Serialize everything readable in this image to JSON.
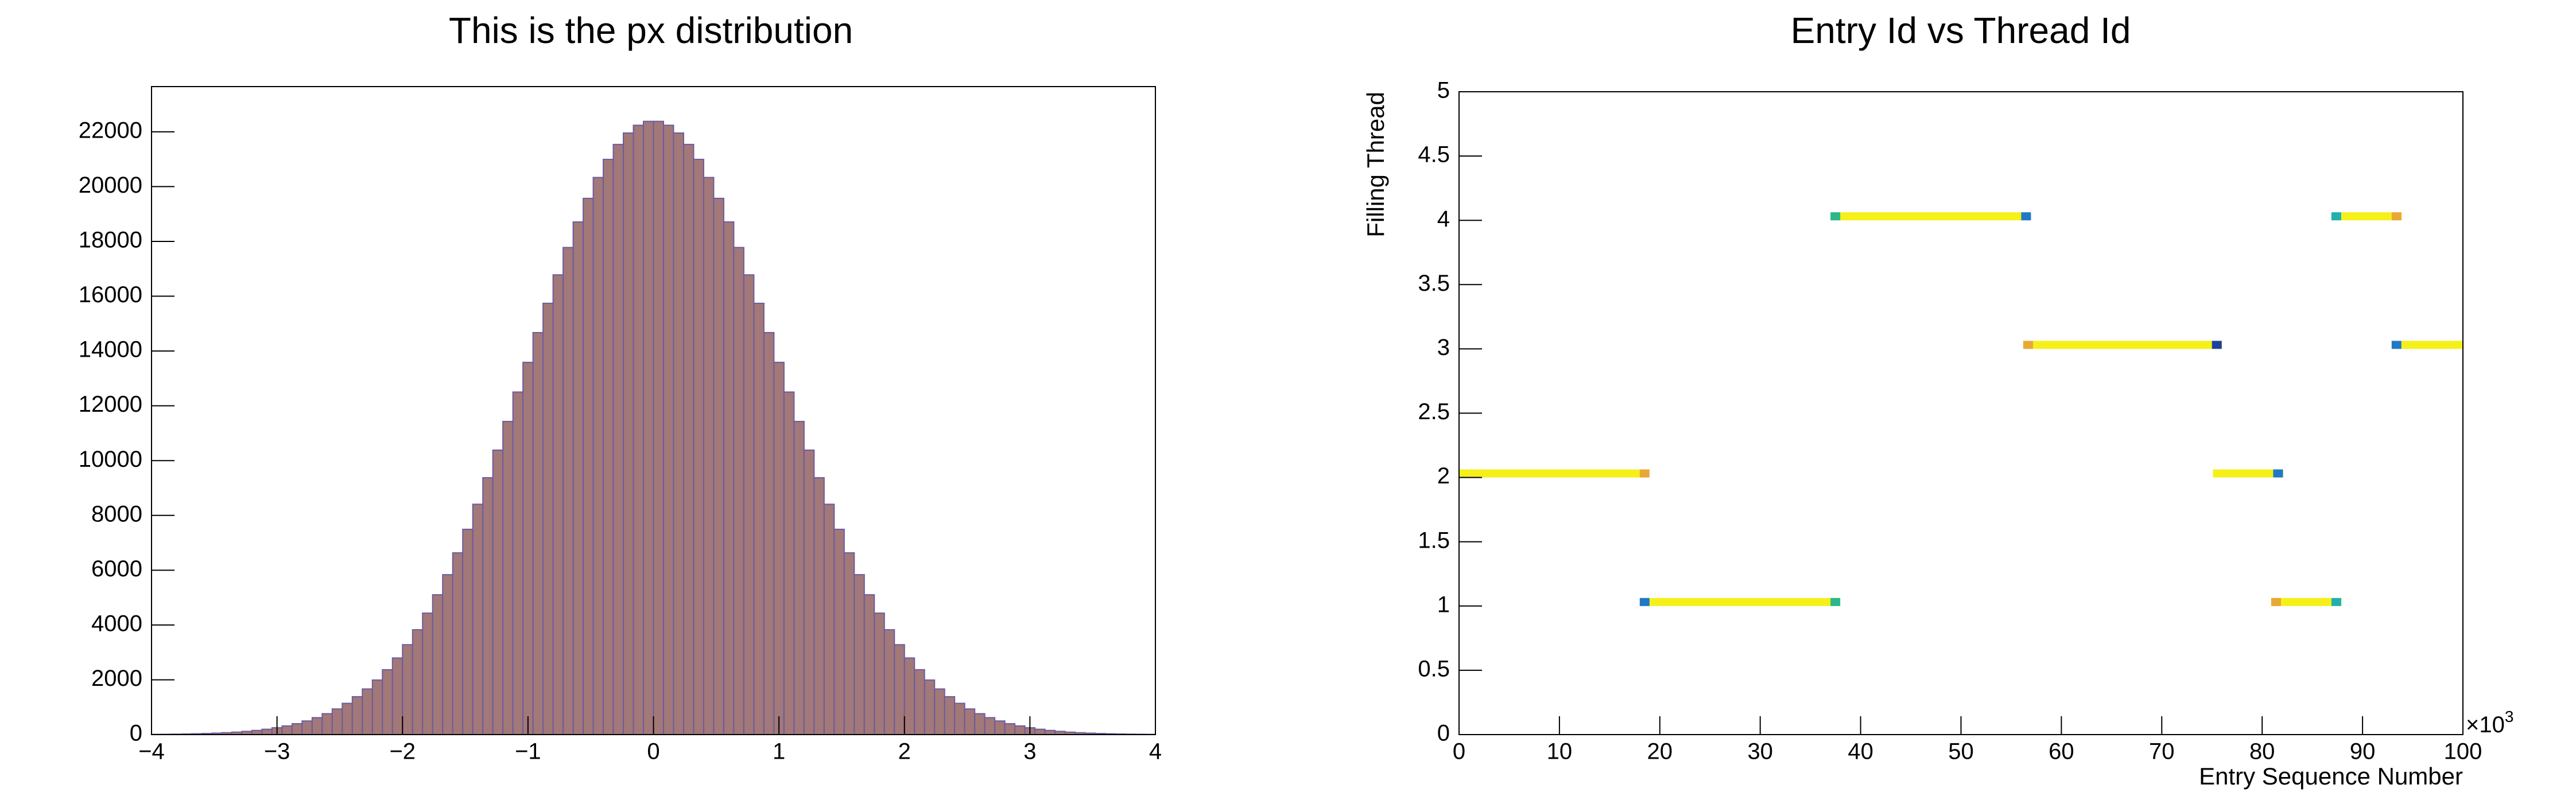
{
  "chart_data": [
    {
      "type": "histogram",
      "title": "This is the px distribution",
      "color": "#a27878",
      "edge_color": "#6c5b9e",
      "bins": [
        -4,
        -3.92,
        -3.84,
        -3.76,
        -3.68,
        -3.6,
        -3.52,
        -3.44,
        -3.36,
        -3.28,
        -3.2,
        -3.12,
        -3.04,
        -2.96,
        -2.88,
        -2.8,
        -2.72,
        -2.64,
        -2.56,
        -2.48,
        -2.4,
        -2.32,
        -2.24,
        -2.16,
        -2.08,
        -2,
        -1.92,
        -1.84,
        -1.76,
        -1.68,
        -1.6,
        -1.52,
        -1.44,
        -1.36,
        -1.28,
        -1.2,
        -1.12,
        -1.04,
        -0.96,
        -0.88,
        -0.8,
        -0.72,
        -0.64,
        -0.56,
        -0.48,
        -0.4,
        -0.32,
        -0.24,
        -0.16,
        -0.08,
        0,
        0.08,
        0.16,
        0.24,
        0.32,
        0.4,
        0.48,
        0.56,
        0.64,
        0.72,
        0.8,
        0.88,
        0.96,
        1.04,
        1.12,
        1.2,
        1.28,
        1.36,
        1.44,
        1.52,
        1.6,
        1.68,
        1.76,
        1.84,
        1.92,
        2,
        2.08,
        2.16,
        2.24,
        2.32,
        2.4,
        2.48,
        2.56,
        2.64,
        2.72,
        2.8,
        2.88,
        2.96,
        3.04,
        3.12,
        3.2,
        3.28,
        3.36,
        3.44,
        3.52,
        3.6,
        3.68,
        3.76,
        3.84,
        3.92,
        4
      ],
      "values": [
        9,
        12,
        16,
        22,
        30,
        40,
        53,
        69,
        90,
        118,
        152,
        195,
        249,
        315,
        397,
        497,
        618,
        763,
        936,
        1141,
        1383,
        1665,
        1992,
        2368,
        2796,
        3281,
        3827,
        4433,
        5104,
        5837,
        6633,
        7493,
        8407,
        9375,
        10383,
        11429,
        12503,
        13586,
        14672,
        15741,
        16779,
        17778,
        18710,
        19571,
        20333,
        20994,
        21539,
        21956,
        22239,
        22382,
        22382,
        22239,
        21956,
        21539,
        20994,
        20333,
        19571,
        18710,
        17778,
        16779,
        15741,
        14672,
        13586,
        12503,
        11429,
        10383,
        9375,
        8407,
        7493,
        6633,
        5837,
        5104,
        4433,
        3827,
        3281,
        2796,
        2368,
        1992,
        1665,
        1383,
        1141,
        936,
        763,
        618,
        497,
        397,
        315,
        249,
        195,
        152,
        118,
        90,
        69,
        53,
        40,
        30,
        22,
        16,
        12,
        9
      ],
      "xlim": [
        -4,
        4
      ],
      "xticks": [
        {
          "value": -4,
          "label": "−4"
        },
        {
          "value": -3,
          "label": "−3"
        },
        {
          "value": -2,
          "label": "−2"
        },
        {
          "value": -1,
          "label": "−1"
        },
        0,
        1,
        2,
        3,
        4
      ],
      "ylim": [
        0,
        23650
      ],
      "yticks": [
        0,
        2000,
        4000,
        6000,
        8000,
        10000,
        12000,
        14000,
        16000,
        18000,
        20000,
        22000
      ]
    },
    {
      "type": "heatmap",
      "title": "Entry Id vs Thread Id",
      "x_label": "Entry Sequence Number",
      "y_label": "Filling Thread",
      "x_multiplier": {
        "base": "×10",
        "exponent": "3"
      },
      "color": "#f5f019",
      "segments": [
        {
          "thread": 2,
          "start": 0,
          "end": 18.9
        },
        {
          "thread": 1,
          "start": 18,
          "end": 37.9
        },
        {
          "thread": 4,
          "start": 37,
          "end": 56.8
        },
        {
          "thread": 3,
          "start": 56.2,
          "end": 76
        },
        {
          "thread": 2,
          "start": 75.1,
          "end": 82.1
        },
        {
          "thread": 1,
          "start": 80.9,
          "end": 87.9
        },
        {
          "thread": 4,
          "start": 86.9,
          "end": 93.9
        },
        {
          "thread": 3,
          "start": 92.9,
          "end": 100
        }
      ],
      "cells": [
        {
          "x": 18,
          "thread": 2,
          "color": "#e8a838"
        },
        {
          "x": 18,
          "thread": 1,
          "color": "#1f78c8"
        },
        {
          "x": 37,
          "thread": 1,
          "color": "#2ab88a"
        },
        {
          "x": 37,
          "thread": 4,
          "color": "#2ab88a"
        },
        {
          "x": 56,
          "thread": 4,
          "color": "#1f78c8"
        },
        {
          "x": 56.2,
          "thread": 3,
          "color": "#e8a838"
        },
        {
          "x": 75,
          "thread": 3,
          "color": "#2040a0"
        },
        {
          "x": 81.1,
          "thread": 2,
          "color": "#1f78c8"
        },
        {
          "x": 80.9,
          "thread": 1,
          "color": "#e8a838"
        },
        {
          "x": 86.9,
          "thread": 1,
          "color": "#20b0b0"
        },
        {
          "x": 86.9,
          "thread": 4,
          "color": "#20b0b0"
        },
        {
          "x": 92.9,
          "thread": 4,
          "color": "#e8a838"
        },
        {
          "x": 92.9,
          "thread": 3,
          "color": "#1f78c8"
        }
      ],
      "xlim": [
        0,
        100
      ],
      "xticks": [
        0,
        10,
        20,
        30,
        40,
        50,
        60,
        70,
        80,
        90,
        100
      ],
      "ylim": [
        0,
        5
      ],
      "yticks": [
        0,
        0.5,
        1,
        1.5,
        2,
        2.5,
        3,
        3.5,
        4,
        4.5,
        5
      ]
    }
  ]
}
